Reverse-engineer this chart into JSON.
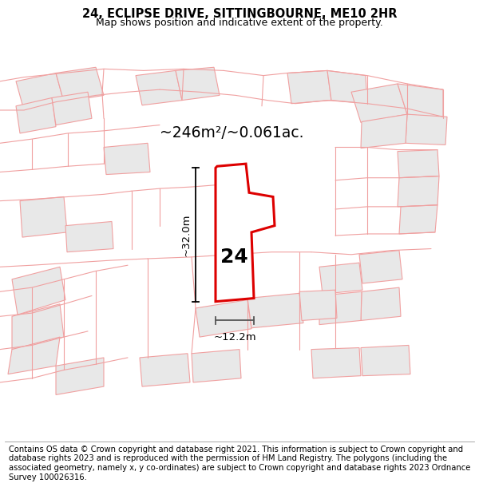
{
  "title": "24, ECLIPSE DRIVE, SITTINGBOURNE, ME10 2HR",
  "subtitle": "Map shows position and indicative extent of the property.",
  "area_label": "~246m²/~0.061ac.",
  "plot_number": "24",
  "height_label": "~32.0m",
  "width_label": "~12.2m",
  "footer": "Contains OS data © Crown copyright and database right 2021. This information is subject to Crown copyright and database rights 2023 and is reproduced with the permission of HM Land Registry. The polygons (including the associated geometry, namely x, y co-ordinates) are subject to Crown copyright and database rights 2023 Ordnance Survey 100026316.",
  "map_bg": "#ffffff",
  "plot_fill": "#ffffff",
  "plot_edge": "#dd0000",
  "building_fill": "#e8e8e8",
  "building_edge": "#f0a0a0",
  "title_fontsize": 10,
  "subtitle_fontsize": 9,
  "footer_fontsize": 7.2
}
